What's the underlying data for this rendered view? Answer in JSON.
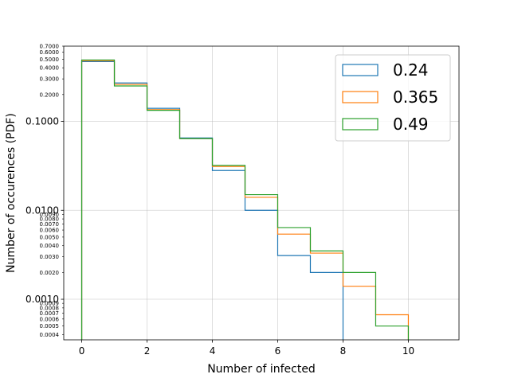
{
  "chart_data": {
    "type": "histogram-step",
    "title": "",
    "xlabel": "Number of infected",
    "ylabel": "Number of occurences (PDF)",
    "xscale": "linear",
    "yscale": "log",
    "xlim": [
      -0.55,
      11.55
    ],
    "ylim": [
      0.00035,
      0.7
    ],
    "grid": true,
    "legend_position": "upper right",
    "x_ticks": [
      "0",
      "2",
      "4",
      "6",
      "8",
      "10"
    ],
    "y_major_ticks": [
      "0.0010",
      "0.0100",
      "0.1000"
    ],
    "y_minor_ticks": [
      "0.0004",
      "0.0005",
      "0.0006",
      "0.0007",
      "0.0008",
      "0.0009",
      "0.0020",
      "0.0030",
      "0.0040",
      "0.0050",
      "0.0060",
      "0.0070",
      "0.0080",
      "0.0090",
      "0.2000",
      "0.3000",
      "0.4000",
      "0.5000",
      "0.6000",
      "0.7000"
    ],
    "bin_edges": [
      0,
      1,
      2,
      3,
      4,
      5,
      6,
      7,
      8,
      9,
      10,
      11
    ],
    "series": [
      {
        "name": "0.24",
        "color": "#1f77b4",
        "values": [
          0.47,
          0.27,
          0.14,
          0.065,
          0.028,
          0.01,
          0.0031,
          0.002,
          0,
          0,
          0
        ]
      },
      {
        "name": "0.365",
        "color": "#ff7f0e",
        "values": [
          0.48,
          0.26,
          0.135,
          0.064,
          0.031,
          0.014,
          0.0054,
          0.0033,
          0.0014,
          0.00067,
          0
        ]
      },
      {
        "name": "0.49",
        "color": "#2ca02c",
        "values": [
          0.49,
          0.25,
          0.133,
          0.064,
          0.032,
          0.015,
          0.0064,
          0.0035,
          0.002,
          0.0005,
          0
        ]
      }
    ]
  }
}
